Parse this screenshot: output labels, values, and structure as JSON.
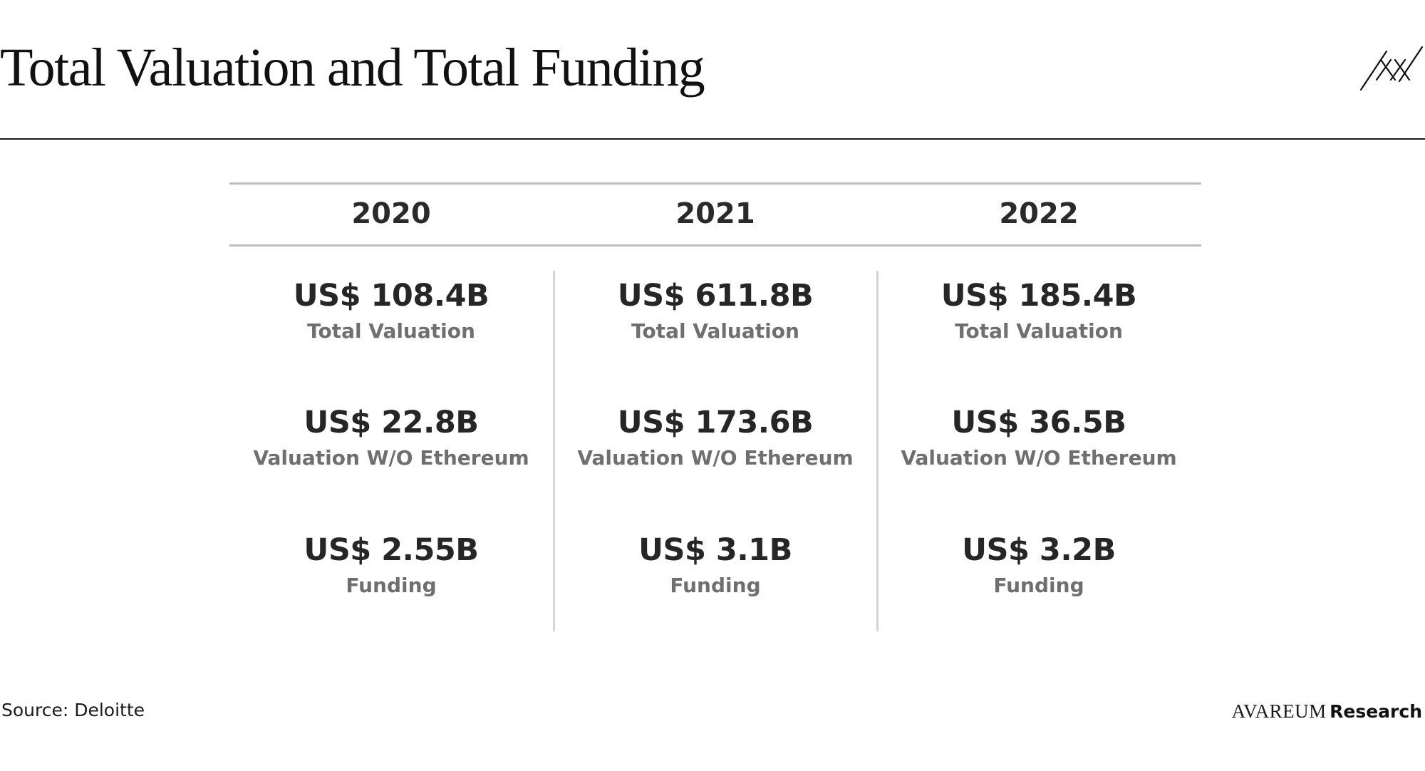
{
  "page": {
    "title": "Total Valuation and Total Funding"
  },
  "years": [
    "2020",
    "2021",
    "2022"
  ],
  "metrics": {
    "2020": {
      "total_valuation": {
        "value": "US$ 108.4B",
        "label": "Total Valuation"
      },
      "valuation_wo_eth": {
        "value": "US$ 22.8B",
        "label": "Valuation W/O Ethereum"
      },
      "funding": {
        "value": "US$ 2.55B",
        "label": "Funding"
      }
    },
    "2021": {
      "total_valuation": {
        "value": "US$ 611.8B",
        "label": "Total Valuation"
      },
      "valuation_wo_eth": {
        "value": "US$ 173.6B",
        "label": "Valuation W/O Ethereum"
      },
      "funding": {
        "value": "US$ 3.1B",
        "label": "Funding"
      }
    },
    "2022": {
      "total_valuation": {
        "value": "US$ 185.4B",
        "label": "Total Valuation"
      },
      "valuation_wo_eth": {
        "value": "US$ 36.5B",
        "label": "Valuation W/O Ethereum"
      },
      "funding": {
        "value": "US$ 3.2B",
        "label": "Funding"
      }
    }
  },
  "footer": {
    "source": "Source: Deloitte",
    "brand_name": "AVAREUM",
    "brand_suffix": "Research"
  },
  "icons": {
    "logo": "avareum-logo-icon"
  },
  "colors": {
    "title": "#111111",
    "value_text": "#262626",
    "label_text": "#6f6f6f",
    "rule_dark": "#1a1a1a",
    "rule_light": "#bdbdbd"
  }
}
